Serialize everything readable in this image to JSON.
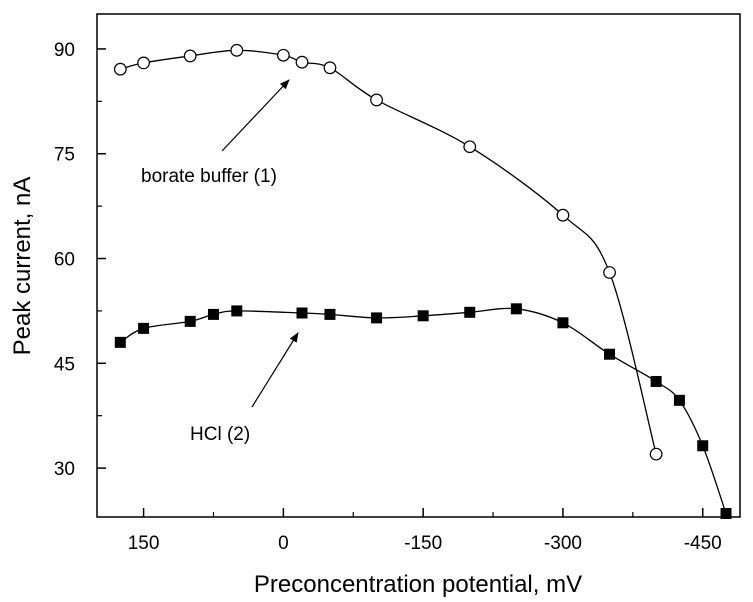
{
  "chart_data": {
    "type": "line",
    "title": "",
    "xlabel": "Preconcentration potential, mV",
    "ylabel": "Peak current, nA",
    "xlim": [
      200,
      -490
    ],
    "ylim": [
      23,
      95
    ],
    "x_ticks": [
      150,
      0,
      -150,
      -300,
      -450
    ],
    "x_tick_labels": [
      "150",
      "0",
      "-150",
      "-300",
      "-450"
    ],
    "y_ticks": [
      30,
      45,
      60,
      75,
      90
    ],
    "y_tick_labels": [
      "30",
      "45",
      "60",
      "75",
      "90"
    ],
    "grid": false,
    "legend": "none",
    "series": [
      {
        "marker": "open-circle",
        "color": "#000000",
        "x": [
          175,
          150,
          100,
          50,
          0,
          -20,
          -50,
          -100,
          -200,
          -300,
          -350,
          -400
        ],
        "y": [
          87.1,
          88.0,
          89.0,
          89.8,
          89.1,
          88.1,
          87.3,
          82.7,
          76.0,
          66.2,
          58.0,
          32.0
        ]
      },
      {
        "marker": "filled-square",
        "color": "#000000",
        "x": [
          175,
          150,
          100,
          75,
          50,
          -20,
          -50,
          -100,
          -150,
          -200,
          -250,
          -300,
          -350,
          -400,
          -425,
          -450,
          -475
        ],
        "y": [
          48.0,
          50.0,
          51.0,
          52.0,
          52.5,
          52.2,
          52.0,
          51.5,
          51.8,
          52.3,
          52.8,
          50.8,
          46.3,
          42.4,
          39.7,
          33.2,
          23.5
        ]
      }
    ],
    "annotations": [
      {
        "text": "borate buffer (1)",
        "points_to": {
          "x": 0,
          "y": 87.5
        }
      },
      {
        "text": "HCl (2)",
        "points_to": {
          "x": 0,
          "y": 52.0
        }
      }
    ]
  }
}
